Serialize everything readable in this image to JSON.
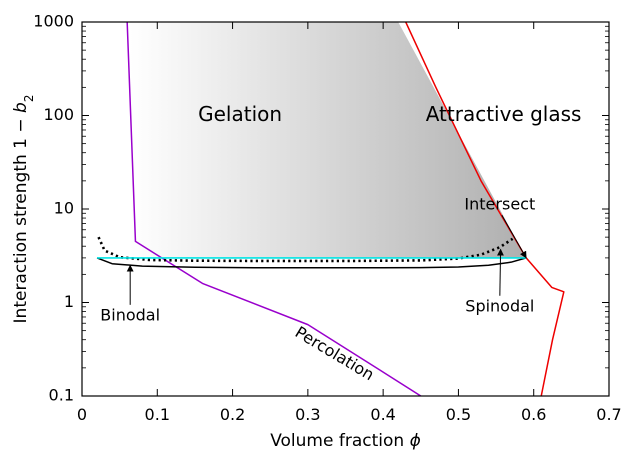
{
  "chart_data": {
    "type": "line",
    "xlabel": "Volume fraction ",
    "xlabel_symbol": "ϕ",
    "ylabel": "Interaction strength 1 − ",
    "ylabel_symbol": "b",
    "ylabel_subscript": "2",
    "xlim": [
      0,
      0.7
    ],
    "ylim": [
      0.1,
      1000
    ],
    "yscale": "log",
    "grid": false,
    "x_ticks": [
      "0",
      "0.1",
      "0.2",
      "0.3",
      "0.4",
      "0.5",
      "0.6",
      "0.7"
    ],
    "x_tick_values": [
      0,
      0.1,
      0.2,
      0.3,
      0.4,
      0.5,
      0.6,
      0.7
    ],
    "y_ticks": [
      "0.1",
      "1",
      "10",
      "100",
      "1000"
    ],
    "y_tick_values": [
      0.1,
      1,
      10,
      100,
      1000
    ],
    "colors": {
      "percolation": "#9900cc",
      "glass": "#ee0000",
      "binodal": "#000000",
      "spinodal": "#000000",
      "cyan": "#00e5e5",
      "gel_light": "#ffffff",
      "gel_dark": "#a0a0a0"
    },
    "regions": [
      {
        "name": "gelation",
        "x": [
          0.06,
          0.42,
          0.59,
          0.02
        ],
        "y": [
          1000,
          1000,
          3.0,
          3.0
        ]
      }
    ],
    "series": [
      {
        "key": "percolation",
        "x": [
          0.06,
          0.071,
          0.16,
          0.3,
          0.4,
          0.45
        ],
        "y": [
          1000,
          4.5,
          1.6,
          0.58,
          0.18,
          0.1
        ]
      },
      {
        "key": "glass",
        "x": [
          0.43,
          0.47,
          0.53,
          0.59,
          0.624,
          0.64,
          0.625,
          0.61
        ],
        "y": [
          1000,
          200,
          20,
          3.0,
          1.45,
          1.3,
          0.4,
          0.1
        ]
      },
      {
        "key": "binodal",
        "x": [
          0.02,
          0.04,
          0.08,
          0.15,
          0.25,
          0.35,
          0.45,
          0.5,
          0.54,
          0.57,
          0.59
        ],
        "y": [
          3.0,
          2.6,
          2.45,
          2.38,
          2.35,
          2.35,
          2.36,
          2.4,
          2.5,
          2.7,
          3.0
        ]
      },
      {
        "key": "spinodal",
        "x": [
          0.022,
          0.03,
          0.05,
          0.09,
          0.15,
          0.25,
          0.35,
          0.45,
          0.5,
          0.53,
          0.555,
          0.572
        ],
        "y": [
          5.0,
          3.6,
          3.05,
          2.85,
          2.8,
          2.78,
          2.78,
          2.82,
          2.95,
          3.25,
          3.9,
          4.8
        ]
      },
      {
        "key": "cyan",
        "x": [
          0.02,
          0.59
        ],
        "y": [
          3.0,
          3.0
        ]
      }
    ],
    "annotations": [
      {
        "text": "Gelation",
        "x": 0.21,
        "y": 100,
        "size": "big"
      },
      {
        "text": "Attractive glass",
        "x": 0.56,
        "y": 100,
        "size": "big"
      },
      {
        "text": "Intersect",
        "x": 0.555,
        "y": 11,
        "arrow_to": [
          0.59,
          3.0
        ]
      },
      {
        "text": "Spinodal",
        "x": 0.555,
        "y": 0.9,
        "arrow_to": [
          0.556,
          3.7
        ]
      },
      {
        "text": "Binodal",
        "x": 0.064,
        "y": 0.72,
        "arrow_to": [
          0.064,
          2.5
        ]
      },
      {
        "text": "Percolation",
        "x": 0.335,
        "y": 0.28,
        "rotate": 31
      }
    ]
  }
}
